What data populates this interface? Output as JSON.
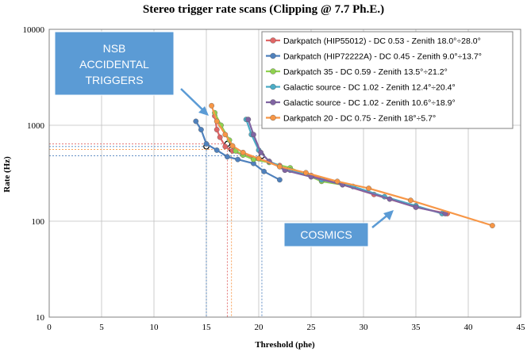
{
  "chart_data": {
    "type": "line",
    "title": "Stereo trigger rate scans (Clipping @ 7.7 Ph.E.)",
    "xlabel": "Threshold (phe)",
    "ylabel": "Rate (Hz)",
    "xlim": [
      0,
      45
    ],
    "ylim": [
      10,
      10000
    ],
    "yscale": "log",
    "x_ticks": [
      "0",
      "5",
      "10",
      "15",
      "20",
      "25",
      "30",
      "35",
      "40",
      "45"
    ],
    "y_ticks": [
      "10",
      "100",
      "1000",
      "10000"
    ],
    "grid": true,
    "legend_position": "top-right",
    "series": [
      {
        "name": "Darkpatch (HIP55012) - DC 0.53 - Zenith 18.0°÷28.0°",
        "color": "#e06666",
        "x": [
          15.8,
          16.0,
          16.3,
          16.8,
          17.5,
          18.5,
          20.0,
          22.0,
          25.0,
          28.0,
          31.0,
          35.0,
          38.0
        ],
        "y": [
          1250,
          900,
          750,
          600,
          540,
          490,
          450,
          380,
          300,
          240,
          190,
          140,
          120
        ]
      },
      {
        "name": "Darkpatch (HIP72222A) - DC 0.45 - Zenith 9.0°÷13.7°",
        "color": "#4f81bd",
        "x": [
          14.0,
          14.5,
          15.0,
          16.0,
          17.0,
          18.0,
          19.5,
          20.5,
          22.0
        ],
        "y": [
          1100,
          900,
          640,
          550,
          470,
          440,
          400,
          330,
          270
        ]
      },
      {
        "name": "Darkpatch 35 - DC 0.59 - Zenith 13.5°÷21.2°",
        "color": "#8fd14f",
        "x": [
          15.8,
          16.4,
          17.2,
          17.8,
          18.5,
          19.5,
          21.0,
          23.0,
          26.0,
          29.0
        ],
        "y": [
          1350,
          1000,
          700,
          540,
          490,
          440,
          410,
          360,
          260,
          230
        ]
      },
      {
        "name": "Galactic source - DC 1.02 - Zenith 12.4°÷20.4°",
        "color": "#4bacc6",
        "x": [
          18.8,
          19.3,
          20.0,
          21.0,
          23.0,
          26.0,
          29.0,
          32.0,
          35.0,
          37.5
        ],
        "y": [
          1150,
          800,
          550,
          420,
          340,
          270,
          230,
          180,
          145,
          120
        ]
      },
      {
        "name": "Galactic source - DC 1.02 - Zenith 10.6°÷18.9°",
        "color": "#8064a2",
        "x": [
          19.0,
          19.5,
          20.2,
          21.0,
          22.5,
          25.0,
          28.0,
          32.5,
          35.0,
          37.8
        ],
        "y": [
          1150,
          800,
          520,
          420,
          340,
          290,
          240,
          170,
          140,
          120
        ]
      },
      {
        "name": "Darkpatch 20 - DC 0.75 - Zenith 18°÷5.7°",
        "color": "#f79646",
        "x": [
          15.5,
          16.0,
          16.8,
          17.5,
          18.5,
          20.0,
          22.0,
          24.5,
          27.5,
          30.5,
          34.5,
          42.3
        ],
        "y": [
          1600,
          1100,
          800,
          610,
          520,
          450,
          370,
          320,
          260,
          220,
          165,
          90
        ]
      }
    ],
    "reference_lines": [
      {
        "x": 15.0,
        "y": 600,
        "color": "#4f81bd"
      },
      {
        "x": 17.0,
        "y": 640,
        "color": "#e06666"
      },
      {
        "x": 17.4,
        "y": 560,
        "color": "#f79646"
      },
      {
        "x": 20.3,
        "y": 480,
        "color": "#4f81bd"
      }
    ],
    "annotations": [
      {
        "text_lines": [
          "NSB",
          "ACCIDENTAL",
          "TRIGGERS"
        ]
      },
      {
        "text_lines": [
          "COSMICS"
        ]
      }
    ]
  }
}
